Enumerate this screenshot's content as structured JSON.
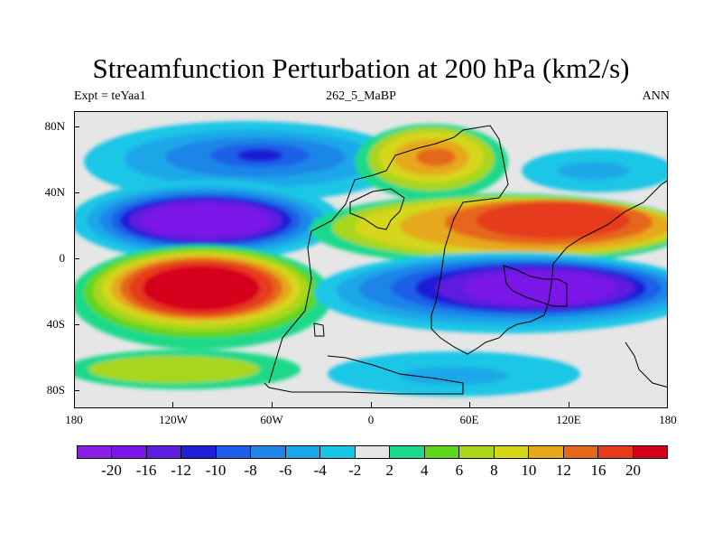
{
  "title": "Streamfunction Perturbation at 200 hPa (km2/s)",
  "left_label": "Expt = teYaa1",
  "center_label": "262_5_MaBP",
  "right_label": "ANN",
  "lat_labels": [
    "80N",
    "40N",
    "0",
    "40S",
    "80S"
  ],
  "lon_labels": [
    "180",
    "120W",
    "60W",
    "0",
    "60E",
    "120E",
    "180"
  ],
  "colorbar": {
    "colors": [
      "#8c1fe6",
      "#7a17e8",
      "#5e1fe0",
      "#1f1fd6",
      "#1c5ee8",
      "#1f86e8",
      "#1aa8e8",
      "#1ac6e6",
      "#e6e6e6",
      "#1ad98a",
      "#5ed61a",
      "#a8d61a",
      "#d6d61a",
      "#e6a81a",
      "#e6661a",
      "#e63a1a",
      "#d6001a"
    ],
    "labels": [
      "-20",
      "-16",
      "-12",
      "-10",
      "-8",
      "-6",
      "-4",
      "-2",
      "2",
      "4",
      "6",
      "8",
      "10",
      "12",
      "16",
      "20"
    ]
  }
}
